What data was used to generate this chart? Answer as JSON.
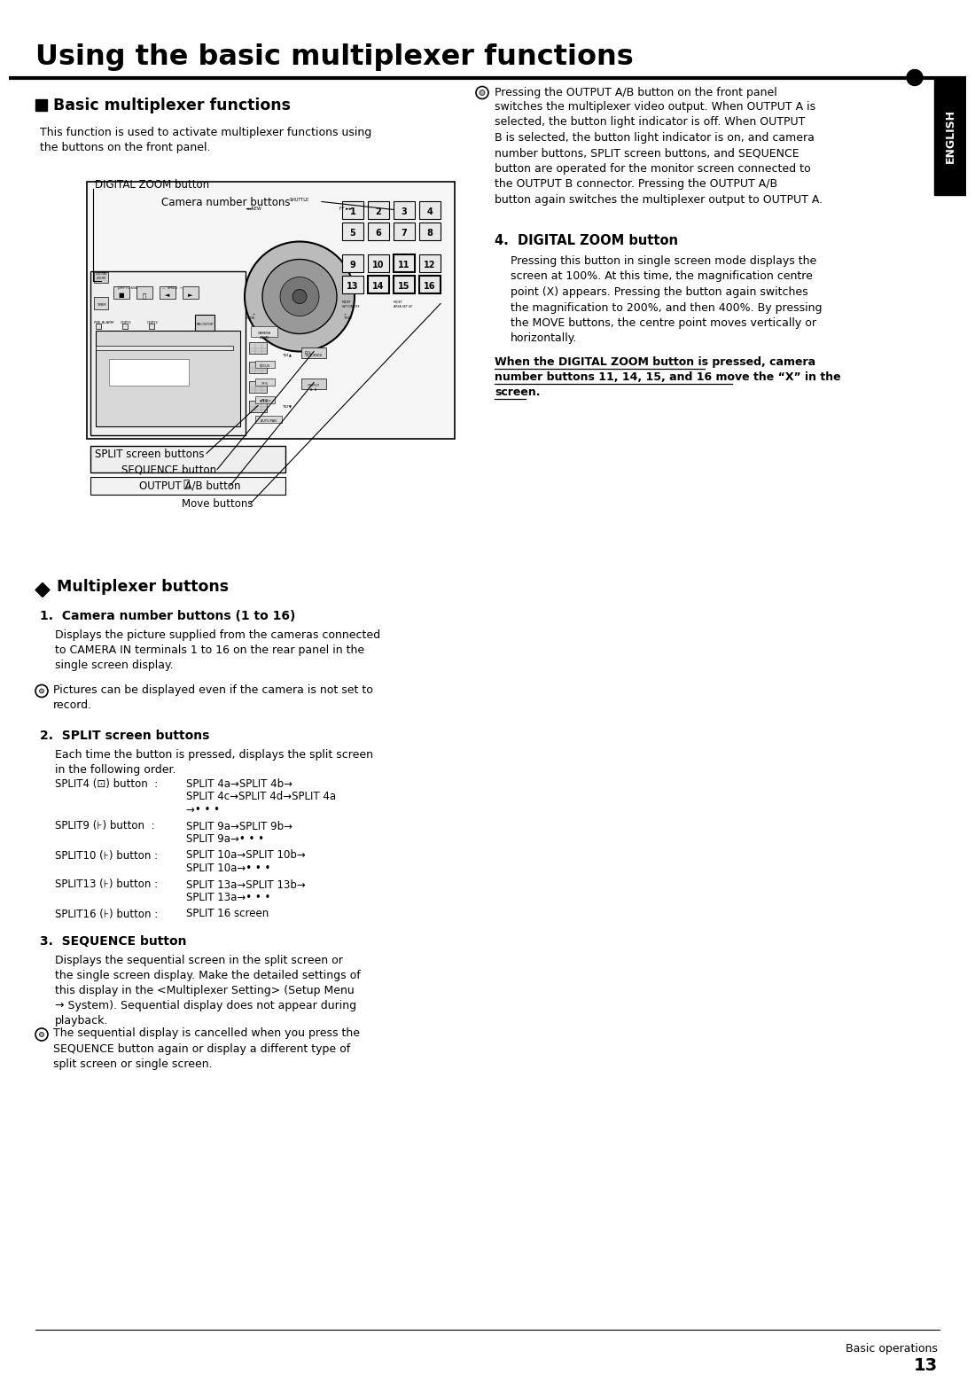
{
  "title": "Using the basic multiplexer functions",
  "page_number": "13",
  "footer_text": "Basic operations",
  "bg_color": "#ffffff",
  "text_color": "#000000",
  "section1_heading": "Basic multiplexer functions",
  "section1_body1": "This function is used to activate multiplexer functions using",
  "section1_body2": "the buttons on the front panel.",
  "diagram_labels": [
    "DIGITAL ZOOM button",
    "Camera number buttons",
    "SPLIT screen buttons",
    "SEQUENCE button",
    "OUTPUT A/B button",
    "Move buttons"
  ],
  "right_col_title4": "DIGITAL ZOOM button",
  "right_col_body4": "Pressing this button in single screen mode displays the\nscreen at 100%. At this time, the magnification centre\npoint (X) appears. Pressing the button again switches\nthe magnification to 200%, and then 400%. By pressing\nthe MOVE buttons, the centre point moves vertically or\nhorizontally.",
  "right_col_note_lines": [
    "When the DIGITAL ZOOM button is pressed, camera",
    "number buttons 11, 14, 15, and 16 move the “X” in the",
    "screen."
  ],
  "right_col_pressing_line1": "Pressing the OUTPUT A/B button on the front panel",
  "right_col_pressing_rest": "switches the multiplexer video output. When OUTPUT A is\nselected, the button light indicator is off. When OUTPUT\nB is selected, the button light indicator is on, and camera\nnumber buttons, SPLIT screen buttons, and SEQUENCE\nbutton are operated for the monitor screen connected to\nthe OUTPUT B connector. Pressing the OUTPUT A/B\nbutton again switches the multiplexer output to OUTPUT A.",
  "section2_heading": "Multiplexer buttons",
  "item1_heading": "Camera number buttons (1 to 16)",
  "item1_body": "Displays the picture supplied from the cameras connected\nto CAMERA IN terminals 1 to 16 on the rear panel in the\nsingle screen display.",
  "item1_note": "Pictures can be displayed even if the camera is not set to\nrecord.",
  "item2_heading": "SPLIT screen buttons",
  "item2_body": "Each time the button is pressed, displays the split screen\nin the following order.",
  "split4_label": "SPLIT4 (⊡) button",
  "split4_desc1": "SPLIT 4a→SPLIT 4b→",
  "split4_desc2": "SPLIT 4c→SPLIT 4d→SPLIT 4a",
  "split4_desc3": "→• • •",
  "split9_label": "SPLIT9 (⊦) button",
  "split9_desc1": "SPLIT 9a→SPLIT 9b→",
  "split9_desc2": "SPLIT 9a→• • •",
  "split10_label": "SPLIT10 (⊦) button",
  "split10_desc1": "SPLIT 10a→SPLIT 10b→",
  "split10_desc2": "SPLIT 10a→• • •",
  "split13_label": "SPLIT13 (⊦) button",
  "split13_desc1": "SPLIT 13a→SPLIT 13b→",
  "split13_desc2": "SPLIT 13a→• • •",
  "split16_label": "SPLIT16 (⊦) button",
  "split16_desc1": "SPLIT 16 screen",
  "item3_heading": "SEQUENCE button",
  "item3_body": "Displays the sequential screen in the split screen or\nthe single screen display. Make the detailed settings of\nthis display in the <Multiplexer Setting> (Setup Menu\n→ System). Sequential display does not appear during\nplayback.",
  "item3_note": "The sequential display is cancelled when you press the\nSEQUENCE button again or display a different type of\nsplit screen or single screen.",
  "english_tab": "ENGLISH"
}
